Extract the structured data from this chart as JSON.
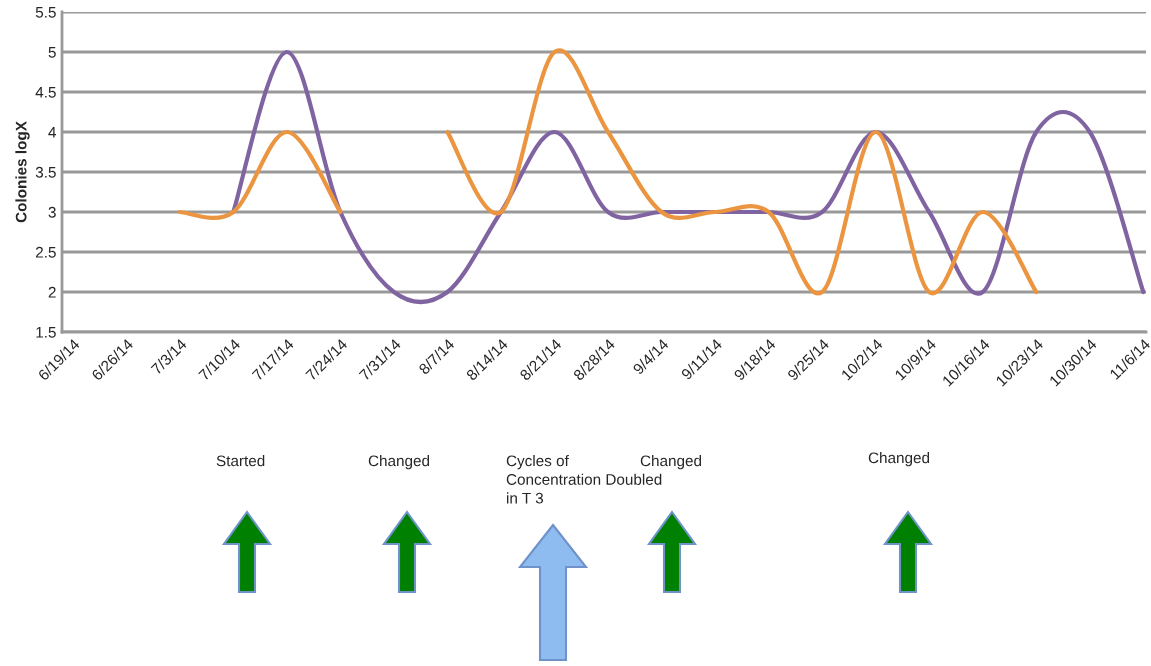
{
  "chart_data": {
    "type": "line",
    "ylabel": "Colonies logX",
    "categories": [
      "6/19/14",
      "6/26/14",
      "7/3/14",
      "7/10/14",
      "7/17/14",
      "7/24/14",
      "7/31/14",
      "8/7/14",
      "8/14/14",
      "8/21/14",
      "8/28/14",
      "9/4/14",
      "9/11/14",
      "9/18/14",
      "9/25/14",
      "10/2/14",
      "10/9/14",
      "10/16/14",
      "10/23/14",
      "10/30/14",
      "11/6/14"
    ],
    "series": [
      {
        "color": "#8064a2",
        "values": [
          null,
          null,
          null,
          3,
          5,
          3,
          2,
          2,
          3,
          4,
          3,
          3,
          3,
          3,
          3,
          4,
          3,
          2,
          4,
          4,
          2
        ]
      },
      {
        "color": "#eb9540",
        "values": [
          null,
          null,
          3,
          3,
          4,
          3,
          null,
          4,
          3,
          5,
          4,
          3,
          3,
          3,
          2,
          4,
          2,
          3,
          2,
          null,
          null
        ]
      }
    ],
    "ylim": [
      1.5,
      5.5
    ],
    "yticks": [
      1.5,
      2,
      2.5,
      3,
      3.5,
      4,
      4.5,
      5,
      5.5
    ],
    "grid": "y",
    "marker": "none",
    "line_style": "solid",
    "annotations": [
      "Started",
      "Changed",
      "Cycles of Concentration Doubled in T 3",
      "Changed",
      "Changed"
    ]
  }
}
